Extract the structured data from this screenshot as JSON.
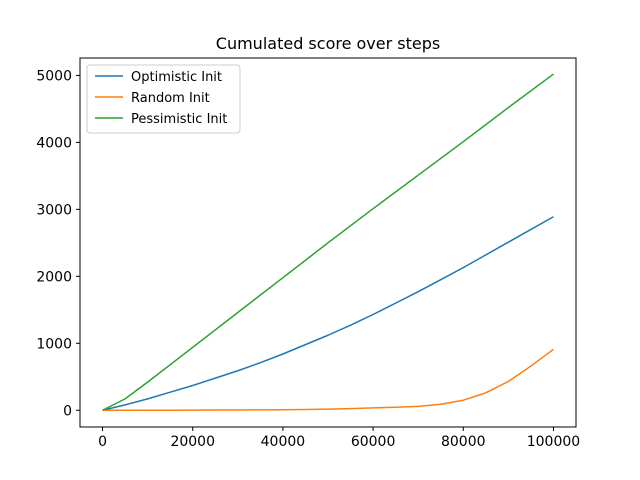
{
  "chart_data": {
    "type": "line",
    "title": "Cumulated score over steps",
    "xlabel": "",
    "ylabel": "",
    "xlim": [
      -5000,
      105000
    ],
    "ylim": [
      -250,
      5260
    ],
    "xticks": [
      0,
      20000,
      40000,
      60000,
      80000,
      100000
    ],
    "yticks": [
      0,
      1000,
      2000,
      3000,
      4000,
      5000
    ],
    "grid": false,
    "legend_position": "top-left",
    "series": [
      {
        "name": "Optimistic Init",
        "color": "#1f77b4",
        "x": [
          0,
          5000,
          10000,
          15000,
          20000,
          25000,
          30000,
          35000,
          40000,
          45000,
          50000,
          55000,
          60000,
          65000,
          70000,
          75000,
          80000,
          85000,
          90000,
          95000,
          100000
        ],
        "y": [
          0,
          80,
          170,
          270,
          370,
          480,
          590,
          710,
          840,
          980,
          1120,
          1270,
          1430,
          1600,
          1770,
          1950,
          2130,
          2320,
          2510,
          2700,
          2890
        ]
      },
      {
        "name": "Random Init",
        "color": "#ff7f0e",
        "x": [
          0,
          5000,
          10000,
          15000,
          20000,
          25000,
          30000,
          35000,
          40000,
          45000,
          50000,
          55000,
          60000,
          65000,
          70000,
          75000,
          80000,
          85000,
          90000,
          95000,
          100000
        ],
        "y": [
          0,
          0,
          0,
          1,
          2,
          3,
          4,
          6,
          8,
          12,
          17,
          25,
          35,
          45,
          58,
          90,
          150,
          260,
          430,
          660,
          910
        ]
      },
      {
        "name": "Pessimistic Init",
        "color": "#2ca02c",
        "x": [
          0,
          5000,
          10000,
          20000,
          30000,
          40000,
          50000,
          60000,
          70000,
          80000,
          90000,
          100000
        ],
        "y": [
          0,
          170,
          420,
          940,
          1460,
          1980,
          2500,
          3010,
          3510,
          4010,
          4520,
          5020
        ]
      }
    ]
  }
}
